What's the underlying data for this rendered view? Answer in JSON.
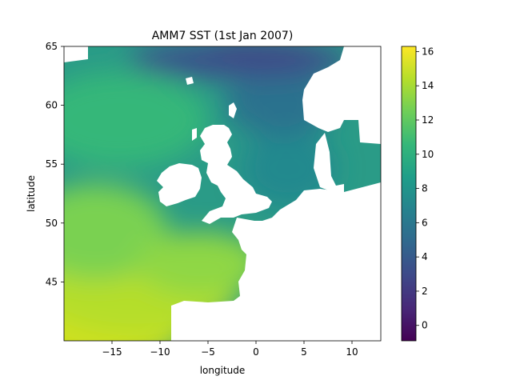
{
  "chart_data": {
    "type": "heatmap",
    "title": "AMM7 SST (1st Jan 2007)",
    "xlabel": "longitude",
    "ylabel": "latitude",
    "xlim": [
      -20,
      13
    ],
    "ylim": [
      40,
      65
    ],
    "xticks": [
      -15,
      -10,
      -5,
      0,
      5,
      10
    ],
    "yticks": [
      45,
      50,
      55,
      60,
      65
    ],
    "colorbar": {
      "colormap": "viridis",
      "range": [
        -0.9,
        16.3
      ],
      "ticks": [
        0,
        2,
        4,
        6,
        8,
        10,
        12,
        14,
        16
      ]
    },
    "field_description": "Sea surface temperature in °C over the NW European shelf; land is masked (white). Warmest (~15–16) in the southwest near 40–43N, coldest (~1–4) along the northern edge near 64–65N and in the Norwegian Sea coastal band; North Sea ~8–10.",
    "sample_points": [
      {
        "lon": -18,
        "lat": 41,
        "value": 15.8
      },
      {
        "lon": -12,
        "lat": 41,
        "value": 15.2
      },
      {
        "lon": -15,
        "lat": 45,
        "value": 13.8
      },
      {
        "lon": -8,
        "lat": 46,
        "value": 13.0
      },
      {
        "lon": -15,
        "lat": 50,
        "value": 12.5
      },
      {
        "lon": -18,
        "lat": 55,
        "value": 11.0
      },
      {
        "lon": -12,
        "lat": 58,
        "value": 9.6
      },
      {
        "lon": -15,
        "lat": 62,
        "value": 8.5
      },
      {
        "lon": 3,
        "lat": 55,
        "value": 9.0
      },
      {
        "lon": 6,
        "lat": 58,
        "value": 7.5
      },
      {
        "lon": -5,
        "lat": 63,
        "value": 5.0
      },
      {
        "lon": 2,
        "lat": 64.8,
        "value": 1.5
      },
      {
        "lon": 8,
        "lat": 63,
        "value": 5.5
      }
    ],
    "colors": {
      "viridis": [
        "#440154",
        "#482878",
        "#3e4989",
        "#31688e",
        "#26828e",
        "#1f9e89",
        "#35b779",
        "#6ece58",
        "#b5de2b",
        "#fde725"
      ],
      "land": "#ffffff"
    }
  }
}
